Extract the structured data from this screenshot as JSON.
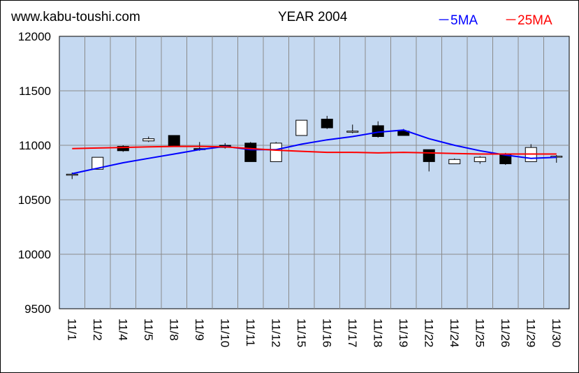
{
  "header": {
    "site": "www.kabu-toushi.com",
    "title": "YEAR 2004"
  },
  "colors": {
    "plot_bg": "#c5d9f1",
    "ma5": "#0000ff",
    "ma25": "#ff0000",
    "candle_up": "#ffffff",
    "candle_down": "#000000"
  },
  "chart_data": {
    "type": "candlestick",
    "title": "YEAR 2004",
    "ylim": [
      9500,
      12000
    ],
    "yticks": [
      9500,
      10000,
      10500,
      11000,
      11500,
      12000
    ],
    "grid": true,
    "legend_position": "top-right",
    "categories": [
      "11/1",
      "11/2",
      "11/4",
      "11/5",
      "11/8",
      "11/9",
      "11/10",
      "11/11",
      "11/12",
      "11/15",
      "11/16",
      "11/17",
      "11/18",
      "11/19",
      "11/22",
      "11/24",
      "11/25",
      "11/26",
      "11/29",
      "11/30"
    ],
    "ohlc": [
      {
        "open": 10730,
        "high": 10750,
        "low": 10690,
        "close": 10735
      },
      {
        "open": 10780,
        "high": 10890,
        "low": 10780,
        "close": 10890
      },
      {
        "open": 10990,
        "high": 11000,
        "low": 10940,
        "close": 10950
      },
      {
        "open": 11040,
        "high": 11080,
        "low": 11030,
        "close": 11060
      },
      {
        "open": 11090,
        "high": 11090,
        "low": 10990,
        "close": 10990
      },
      {
        "open": 10970,
        "high": 11030,
        "low": 10950,
        "close": 10960
      },
      {
        "open": 11000,
        "high": 11020,
        "low": 10970,
        "close": 10980
      },
      {
        "open": 11020,
        "high": 11030,
        "low": 10850,
        "close": 10850
      },
      {
        "open": 10850,
        "high": 11030,
        "low": 10850,
        "close": 11020
      },
      {
        "open": 11090,
        "high": 11230,
        "low": 11090,
        "close": 11230
      },
      {
        "open": 11240,
        "high": 11270,
        "low": 11150,
        "close": 11160
      },
      {
        "open": 11120,
        "high": 11190,
        "low": 11110,
        "close": 11130
      },
      {
        "open": 11180,
        "high": 11220,
        "low": 11070,
        "close": 11080
      },
      {
        "open": 11130,
        "high": 11150,
        "low": 11090,
        "close": 11090
      },
      {
        "open": 10960,
        "high": 10960,
        "low": 10760,
        "close": 10850
      },
      {
        "open": 10830,
        "high": 10880,
        "low": 10830,
        "close": 10870
      },
      {
        "open": 10850,
        "high": 10900,
        "low": 10830,
        "close": 10890
      },
      {
        "open": 10920,
        "high": 10930,
        "low": 10820,
        "close": 10830
      },
      {
        "open": 10850,
        "high": 11010,
        "low": 10850,
        "close": 10980
      },
      {
        "open": 10900,
        "high": 10910,
        "low": 10840,
        "close": 10900
      }
    ],
    "series": [
      {
        "name": "5MA",
        "color": "#0000ff",
        "values": [
          10740,
          10790,
          10840,
          10880,
          10920,
          10960,
          10990,
          10960,
          10960,
          11010,
          11050,
          11080,
          11120,
          11140,
          11060,
          11000,
          10950,
          10910,
          10880,
          10890
        ]
      },
      {
        "name": "25MA",
        "color": "#ff0000",
        "values": [
          10970,
          10975,
          10980,
          10985,
          10990,
          10990,
          10985,
          10970,
          10955,
          10945,
          10935,
          10935,
          10930,
          10935,
          10930,
          10925,
          10920,
          10920,
          10920,
          10920
        ]
      }
    ]
  }
}
